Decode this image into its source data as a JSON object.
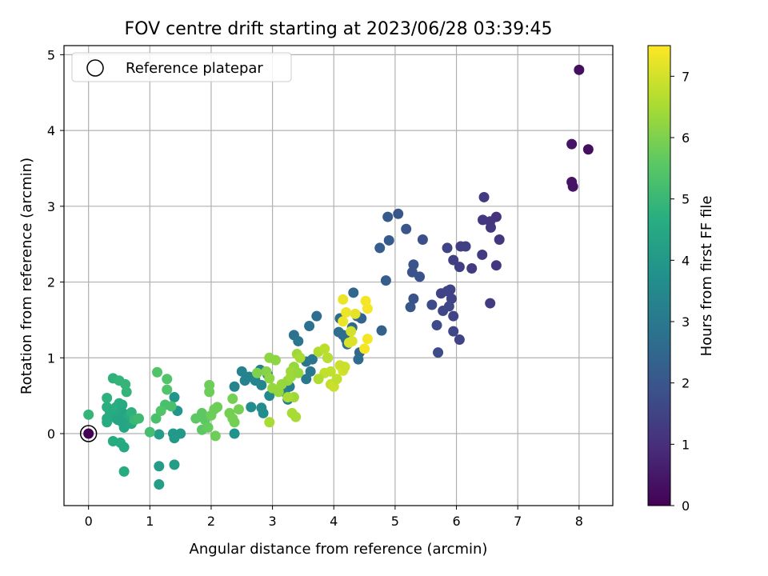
{
  "chart_data": {
    "type": "scatter",
    "title": "FOV centre drift starting at 2023/06/28 03:39:45",
    "xlabel": "Angular distance from reference (arcmin)",
    "ylabel": "Rotation from reference (arcmin)",
    "xlim": [
      -0.4,
      8.55
    ],
    "ylim": [
      -0.95,
      5.12
    ],
    "xticks": [
      0,
      1,
      2,
      3,
      4,
      5,
      6,
      7,
      8
    ],
    "yticks": [
      0,
      1,
      2,
      3,
      4,
      5
    ],
    "grid": true,
    "legend": {
      "position": "top-left",
      "entries": [
        "Reference platepar"
      ]
    },
    "reference_point": {
      "x": 0,
      "y": 0,
      "label": "Reference platepar"
    },
    "colorbar": {
      "label": "Hours from first FF file",
      "range": [
        0,
        7.5
      ],
      "ticks": [
        0,
        1,
        2,
        3,
        4,
        5,
        6,
        7
      ],
      "colormap": "viridis"
    },
    "points": [
      [
        8.0,
        4.8,
        0.3
      ],
      [
        7.88,
        3.82,
        0.4
      ],
      [
        8.15,
        3.75,
        0.3
      ],
      [
        7.88,
        3.32,
        0.4
      ],
      [
        7.9,
        3.26,
        0.4
      ],
      [
        6.45,
        3.12,
        1.3
      ],
      [
        6.43,
        2.82,
        1.2
      ],
      [
        6.55,
        2.8,
        1.2
      ],
      [
        6.56,
        2.72,
        1.2
      ],
      [
        6.65,
        2.86,
        1.1
      ],
      [
        6.7,
        2.56,
        1.2
      ],
      [
        6.42,
        2.36,
        1.3
      ],
      [
        6.07,
        2.47,
        1.4
      ],
      [
        6.15,
        2.47,
        1.4
      ],
      [
        6.25,
        2.18,
        1.3
      ],
      [
        6.05,
        2.2,
        1.4
      ],
      [
        5.95,
        2.29,
        1.4
      ],
      [
        5.85,
        2.45,
        1.5
      ],
      [
        6.65,
        2.22,
        1.2
      ],
      [
        6.55,
        1.72,
        1.3
      ],
      [
        5.9,
        1.9,
        1.5
      ],
      [
        5.85,
        1.88,
        1.5
      ],
      [
        5.75,
        1.85,
        1.5
      ],
      [
        5.92,
        1.78,
        1.5
      ],
      [
        5.88,
        1.68,
        1.6
      ],
      [
        5.78,
        1.62,
        1.6
      ],
      [
        5.6,
        1.7,
        1.7
      ],
      [
        5.95,
        1.55,
        1.5
      ],
      [
        5.68,
        1.43,
        1.7
      ],
      [
        5.95,
        1.35,
        1.6
      ],
      [
        6.05,
        1.24,
        1.5
      ],
      [
        5.7,
        1.07,
        1.7
      ],
      [
        5.45,
        2.56,
        1.8
      ],
      [
        5.18,
        2.7,
        2.0
      ],
      [
        5.05,
        2.9,
        2.0
      ],
      [
        4.88,
        2.86,
        2.1
      ],
      [
        4.9,
        2.55,
        2.1
      ],
      [
        4.75,
        2.45,
        2.2
      ],
      [
        5.3,
        2.23,
        1.9
      ],
      [
        5.28,
        2.13,
        1.9
      ],
      [
        5.4,
        2.07,
        1.9
      ],
      [
        4.85,
        2.02,
        2.2
      ],
      [
        5.3,
        1.78,
        1.9
      ],
      [
        5.25,
        1.67,
        2.0
      ],
      [
        4.78,
        1.36,
        2.3
      ],
      [
        4.32,
        1.86,
        2.5
      ],
      [
        3.72,
        1.55,
        2.7
      ],
      [
        3.6,
        1.42,
        2.8
      ],
      [
        3.35,
        1.3,
        2.8
      ],
      [
        3.42,
        1.22,
        2.9
      ],
      [
        4.38,
        1.55,
        2.5
      ],
      [
        4.45,
        1.52,
        2.4
      ],
      [
        4.1,
        1.52,
        2.6
      ],
      [
        4.3,
        1.4,
        2.6
      ],
      [
        4.08,
        1.34,
        2.7
      ],
      [
        4.2,
        1.24,
        2.6
      ],
      [
        4.15,
        1.3,
        2.7
      ],
      [
        4.22,
        1.18,
        2.7
      ],
      [
        4.42,
        1.07,
        2.5
      ],
      [
        4.4,
        0.98,
        2.6
      ],
      [
        3.9,
        1.0,
        2.8
      ],
      [
        3.65,
        0.98,
        2.9
      ],
      [
        3.55,
        0.95,
        2.9
      ],
      [
        3.62,
        0.82,
        3.0
      ],
      [
        3.55,
        0.72,
        3.0
      ],
      [
        3.28,
        0.62,
        3.1
      ],
      [
        3.2,
        0.55,
        3.2
      ],
      [
        3.25,
        0.45,
        3.2
      ],
      [
        2.5,
        0.82,
        3.3
      ],
      [
        2.62,
        0.75,
        3.3
      ],
      [
        2.55,
        0.7,
        3.3
      ],
      [
        2.8,
        0.84,
        3.3
      ],
      [
        2.92,
        0.78,
        3.3
      ],
      [
        2.72,
        0.7,
        3.4
      ],
      [
        2.82,
        0.64,
        3.4
      ],
      [
        2.38,
        0.62,
        3.4
      ],
      [
        2.95,
        0.5,
        3.5
      ],
      [
        2.82,
        0.34,
        3.6
      ],
      [
        2.85,
        0.27,
        3.6
      ],
      [
        2.65,
        0.35,
        3.6
      ],
      [
        2.38,
        0.0,
        3.8
      ],
      [
        1.4,
        0.48,
        3.9
      ],
      [
        1.45,
        0.3,
        3.9
      ],
      [
        1.38,
        0.0,
        4.0
      ],
      [
        1.5,
        0.0,
        4.0
      ],
      [
        1.4,
        -0.06,
        4.0
      ],
      [
        1.15,
        -0.01,
        4.1
      ],
      [
        1.15,
        -0.43,
        4.1
      ],
      [
        1.4,
        -0.41,
        4.1
      ],
      [
        1.15,
        -0.67,
        4.2
      ],
      [
        0.0,
        0.25,
        4.9
      ],
      [
        0.3,
        0.47,
        4.8
      ],
      [
        0.4,
        0.73,
        4.8
      ],
      [
        0.5,
        0.7,
        4.9
      ],
      [
        0.6,
        0.65,
        4.9
      ],
      [
        0.62,
        0.55,
        4.9
      ],
      [
        0.3,
        0.35,
        4.7
      ],
      [
        0.35,
        0.28,
        4.7
      ],
      [
        0.4,
        0.3,
        4.6
      ],
      [
        0.45,
        0.35,
        4.7
      ],
      [
        0.5,
        0.4,
        4.7
      ],
      [
        0.55,
        0.38,
        4.6
      ],
      [
        0.3,
        0.2,
        4.6
      ],
      [
        0.3,
        0.15,
        4.6
      ],
      [
        0.45,
        0.2,
        4.5
      ],
      [
        0.5,
        0.25,
        4.5
      ],
      [
        0.55,
        0.28,
        4.5
      ],
      [
        0.6,
        0.25,
        4.4
      ],
      [
        0.65,
        0.22,
        4.6
      ],
      [
        0.7,
        0.28,
        4.8
      ],
      [
        0.48,
        0.18,
        4.4
      ],
      [
        0.55,
        0.15,
        4.4
      ],
      [
        0.58,
        0.08,
        4.4
      ],
      [
        0.7,
        0.13,
        4.5
      ],
      [
        0.75,
        0.18,
        5.0
      ],
      [
        0.82,
        0.2,
        5.1
      ],
      [
        0.4,
        -0.1,
        4.6
      ],
      [
        0.52,
        -0.12,
        4.6
      ],
      [
        0.58,
        -0.18,
        4.5
      ],
      [
        0.58,
        -0.5,
        4.6
      ],
      [
        1.0,
        0.02,
        5.2
      ],
      [
        1.1,
        0.2,
        5.3
      ],
      [
        1.12,
        0.81,
        5.4
      ],
      [
        1.28,
        0.72,
        5.4
      ],
      [
        1.28,
        0.58,
        5.4
      ],
      [
        1.25,
        0.38,
        5.3
      ],
      [
        1.35,
        0.36,
        5.3
      ],
      [
        1.18,
        0.3,
        5.4
      ],
      [
        1.75,
        0.2,
        5.6
      ],
      [
        1.85,
        0.27,
        5.6
      ],
      [
        1.9,
        0.18,
        5.6
      ],
      [
        1.85,
        0.05,
        5.6
      ],
      [
        1.95,
        0.08,
        5.7
      ],
      [
        1.97,
        0.64,
        5.8
      ],
      [
        1.97,
        0.55,
        5.8
      ],
      [
        2.0,
        0.24,
        5.8
      ],
      [
        2.05,
        0.32,
        5.8
      ],
      [
        2.1,
        0.35,
        5.8
      ],
      [
        2.07,
        -0.03,
        5.8
      ],
      [
        2.3,
        0.27,
        5.9
      ],
      [
        2.35,
        0.2,
        5.9
      ],
      [
        2.38,
        0.15,
        5.9
      ],
      [
        2.35,
        0.46,
        5.9
      ],
      [
        2.45,
        0.32,
        5.9
      ],
      [
        2.75,
        0.8,
        6.0
      ],
      [
        2.9,
        0.82,
        6.1
      ],
      [
        2.95,
        1.0,
        6.2
      ],
      [
        3.05,
        0.97,
        6.2
      ],
      [
        2.95,
        0.73,
        6.2
      ],
      [
        3.0,
        0.6,
        6.3
      ],
      [
        3.1,
        0.55,
        6.3
      ],
      [
        3.15,
        0.65,
        6.3
      ],
      [
        3.25,
        0.7,
        6.3
      ],
      [
        3.3,
        0.75,
        6.4
      ],
      [
        3.35,
        0.88,
        6.3
      ],
      [
        3.4,
        1.05,
        6.4
      ],
      [
        3.45,
        1.0,
        6.5
      ],
      [
        3.3,
        0.82,
        6.4
      ],
      [
        3.42,
        0.8,
        6.3
      ],
      [
        3.35,
        0.48,
        6.4
      ],
      [
        3.38,
        0.22,
        6.5
      ],
      [
        3.32,
        0.27,
        6.5
      ],
      [
        2.95,
        0.15,
        6.5
      ],
      [
        3.25,
        0.48,
        6.5
      ],
      [
        3.75,
        1.08,
        6.6
      ],
      [
        3.85,
        1.12,
        6.7
      ],
      [
        3.9,
        1.0,
        6.7
      ],
      [
        3.95,
        0.82,
        6.8
      ],
      [
        3.85,
        0.8,
        6.8
      ],
      [
        3.75,
        0.72,
        6.6
      ],
      [
        3.95,
        0.65,
        6.8
      ],
      [
        4.0,
        0.62,
        6.9
      ],
      [
        4.05,
        0.72,
        6.8
      ],
      [
        4.1,
        0.9,
        6.9
      ],
      [
        4.15,
        0.83,
        7.0
      ],
      [
        4.18,
        0.88,
        6.9
      ],
      [
        4.25,
        1.2,
        7.1
      ],
      [
        4.28,
        1.35,
        7.0
      ],
      [
        4.3,
        1.22,
        7.1
      ],
      [
        4.35,
        1.58,
        7.2
      ],
      [
        4.15,
        1.77,
        7.3
      ],
      [
        4.2,
        1.6,
        7.3
      ],
      [
        4.15,
        1.48,
        7.3
      ],
      [
        4.52,
        1.75,
        7.4
      ],
      [
        4.55,
        1.65,
        7.4
      ],
      [
        4.5,
        1.12,
        7.4
      ],
      [
        4.55,
        1.25,
        7.4
      ],
      [
        0.0,
        0.0,
        0.0
      ]
    ]
  }
}
